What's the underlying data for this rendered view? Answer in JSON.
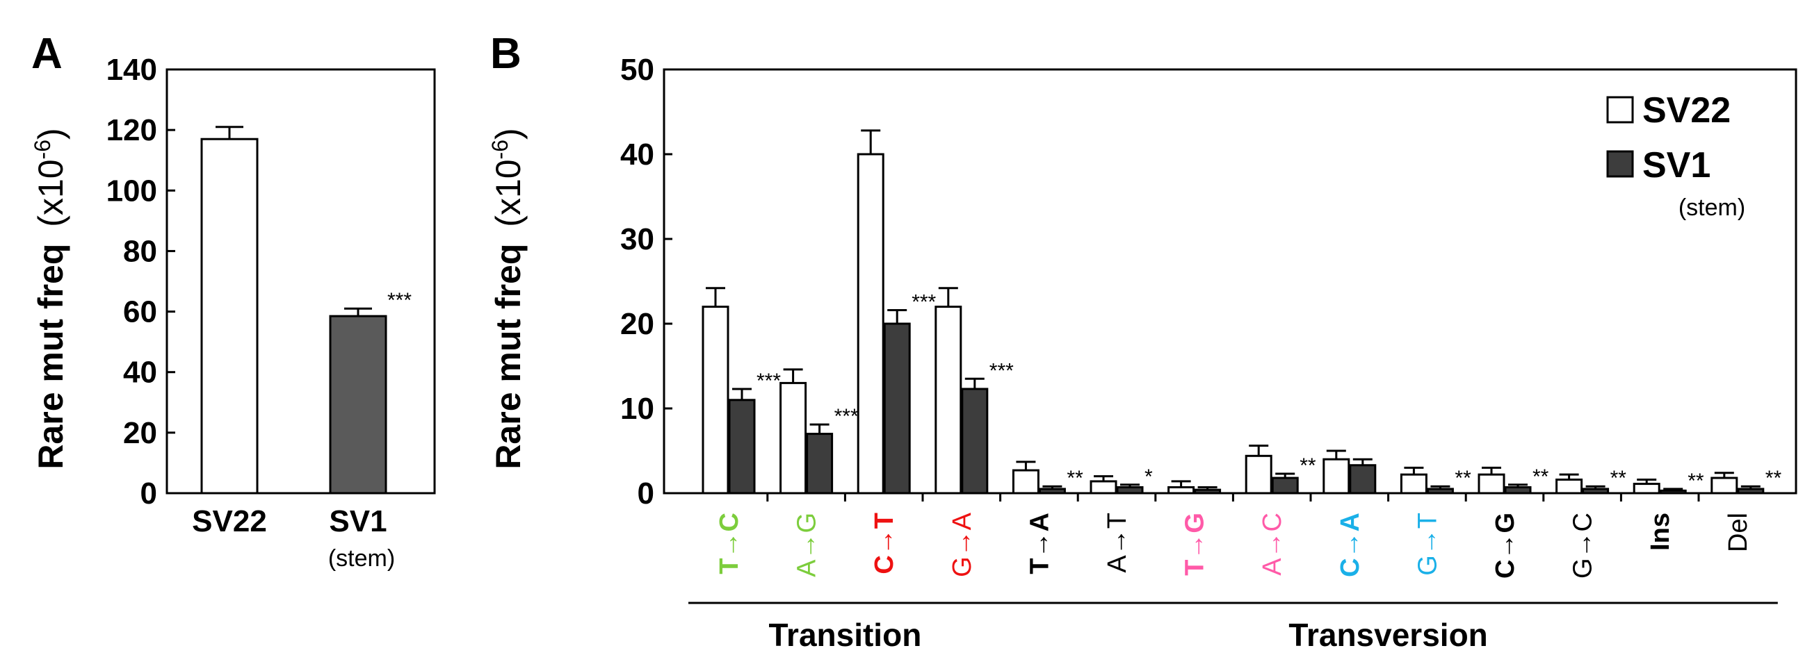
{
  "chart_data": [
    {
      "type": "bar",
      "panel_label": "A",
      "ylabel_main": "Rare mut freq",
      "ylabel_unit": "(x10",
      "ylabel_exp": "-6",
      "ylabel_close": ")",
      "yticks": [
        "0",
        "20",
        "40",
        "60",
        "80",
        "100",
        "120",
        "140"
      ],
      "ylim": [
        0,
        140
      ],
      "categories": [
        "SV22",
        "SV1"
      ],
      "category_sublabels": [
        "",
        "(stem)"
      ],
      "values": [
        117,
        58.5
      ],
      "errors": [
        4,
        2.5
      ],
      "colors": [
        "#ffffff",
        "#5a5a5a"
      ],
      "significance": [
        "",
        "***"
      ]
    },
    {
      "type": "bar",
      "panel_label": "B",
      "ylabel_main": "Rare mut freq",
      "ylabel_unit": "(x10",
      "ylabel_exp": "-6",
      "ylabel_close": ")",
      "yticks": [
        "0",
        "10",
        "20",
        "30",
        "40",
        "50"
      ],
      "ylim": [
        0,
        50
      ],
      "categories": [
        "T→C",
        "A→G",
        "C→T",
        "G→A",
        "T→A",
        "A→T",
        "T→G",
        "A→C",
        "C→A",
        "G→T",
        "C→G",
        "G→C",
        "Ins",
        "Del"
      ],
      "category_colors": [
        "#7ccd3c",
        "#7ccd3c",
        "#ee1111",
        "#ee1111",
        "#000000",
        "#000000",
        "#ff5aa8",
        "#ff5aa8",
        "#1ab0e8",
        "#1ab0e8",
        "#000000",
        "#000000",
        "#000000",
        "#000000"
      ],
      "category_bold": [
        true,
        false,
        true,
        false,
        true,
        false,
        true,
        false,
        true,
        false,
        true,
        false,
        true,
        false
      ],
      "series": [
        {
          "name": "SV22",
          "color": "#ffffff",
          "values": [
            22,
            13,
            40,
            22,
            2.7,
            1.4,
            0.7,
            4.4,
            4.0,
            2.2,
            2.2,
            1.6,
            1.1,
            1.8
          ],
          "errors": [
            2.2,
            1.6,
            2.8,
            2.2,
            1.0,
            0.6,
            0.7,
            1.2,
            1.0,
            0.8,
            0.8,
            0.6,
            0.5,
            0.6
          ]
        },
        {
          "name": "SV1",
          "name_sub": "(stem)",
          "color": "#3d3d3d",
          "values": [
            11,
            7,
            20,
            12.3,
            0.5,
            0.7,
            0.4,
            1.8,
            3.3,
            0.5,
            0.7,
            0.5,
            0.3,
            0.5
          ],
          "errors": [
            1.3,
            1.1,
            1.6,
            1.2,
            0.3,
            0.3,
            0.3,
            0.5,
            0.7,
            0.3,
            0.3,
            0.3,
            0.2,
            0.3
          ]
        }
      ],
      "significance": [
        "***",
        "***",
        "***",
        "***",
        "**",
        "*",
        "",
        "**",
        "",
        "**",
        "**",
        "**",
        "**",
        "**"
      ],
      "groups": [
        {
          "label": "Transition",
          "first": 0,
          "last": 3
        },
        {
          "label": "Transversion",
          "first": 4,
          "last": 13
        }
      ],
      "legend_position": "top-right"
    }
  ]
}
